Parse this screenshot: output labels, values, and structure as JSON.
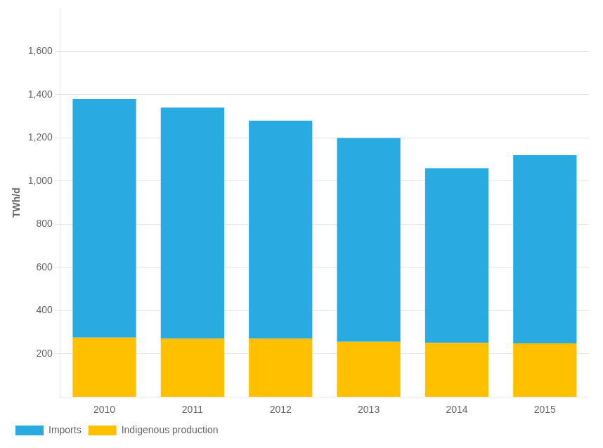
{
  "chart_data": {
    "type": "bar",
    "stacked": true,
    "categories": [
      "2010",
      "2011",
      "2012",
      "2013",
      "2014",
      "2015"
    ],
    "series": [
      {
        "name": "Indigenous production",
        "color": "#FFC000",
        "values": [
          275,
          270,
          270,
          255,
          250,
          248
        ]
      },
      {
        "name": "Imports",
        "color": "#29ABE2",
        "values": [
          1105,
          1070,
          1010,
          945,
          810,
          872
        ]
      }
    ],
    "ylabel": "TWh/d",
    "ylim": [
      0,
      1800
    ],
    "yticks": [
      200,
      400,
      600,
      800,
      {
        "value": 1000,
        "label": "1,000"
      },
      {
        "value": 1200,
        "label": "1,200"
      },
      {
        "value": 1400,
        "label": "1,400"
      },
      {
        "value": 1600,
        "label": "1,600"
      }
    ],
    "grid": true,
    "legend": "lower left"
  }
}
